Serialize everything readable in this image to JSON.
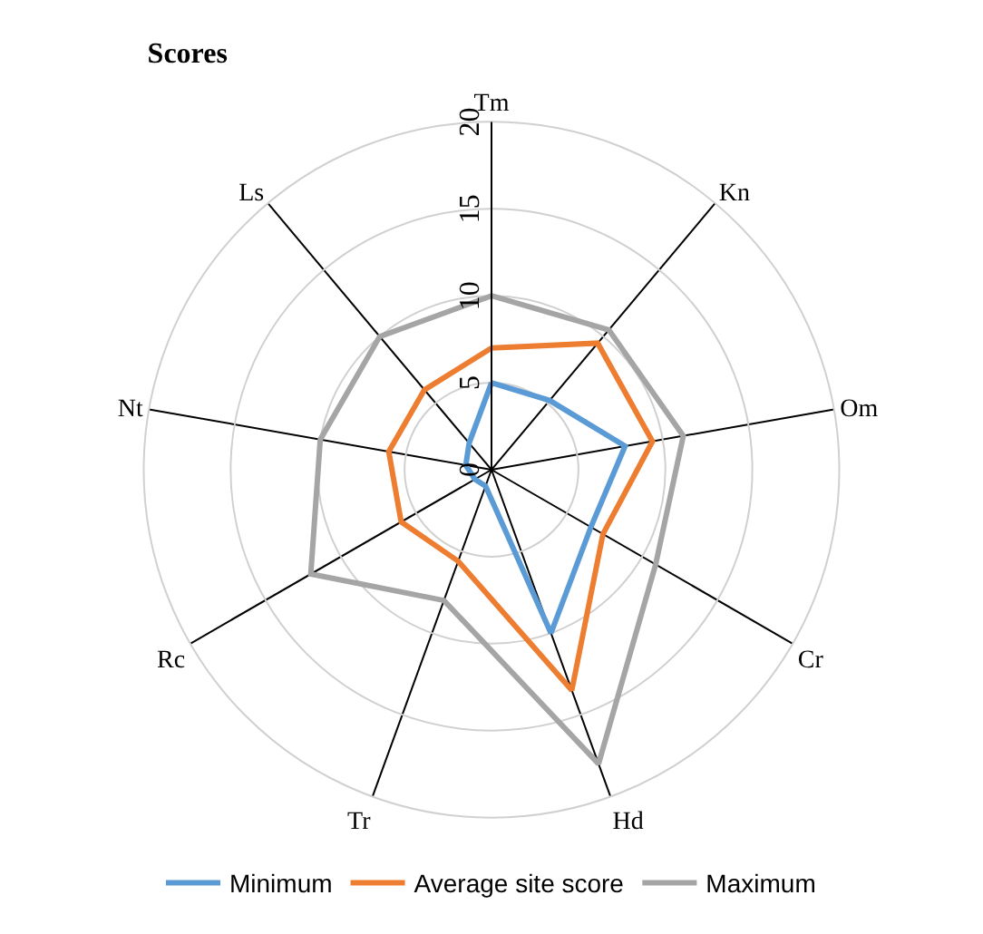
{
  "chart_data": {
    "type": "radar",
    "title": "Scores",
    "categories": [
      "Tm",
      "Kn",
      "Om",
      "Cr",
      "Hd",
      "Tr",
      "Rc",
      "Nt",
      "Ls"
    ],
    "series": [
      {
        "name": "Minimum",
        "color": "#5b9bd5",
        "values": [
          5,
          5.2,
          7.8,
          6.6,
          10,
          1,
          1.1,
          1.5,
          2
        ]
      },
      {
        "name": "Average site score",
        "color": "#ed7d31",
        "values": [
          7,
          9.5,
          9.4,
          7.4,
          13.5,
          5.6,
          6,
          6,
          6
        ]
      },
      {
        "name": "Maximum",
        "color": "#a5a5a5",
        "values": [
          10,
          10.5,
          11.2,
          10.9,
          18,
          8,
          12,
          10,
          10
        ]
      }
    ],
    "ylim": [
      0,
      20
    ],
    "yticks": [
      0,
      5,
      10,
      15,
      20
    ],
    "grid": true,
    "legend": "bottom",
    "marker": "none",
    "line_style": "solid"
  }
}
